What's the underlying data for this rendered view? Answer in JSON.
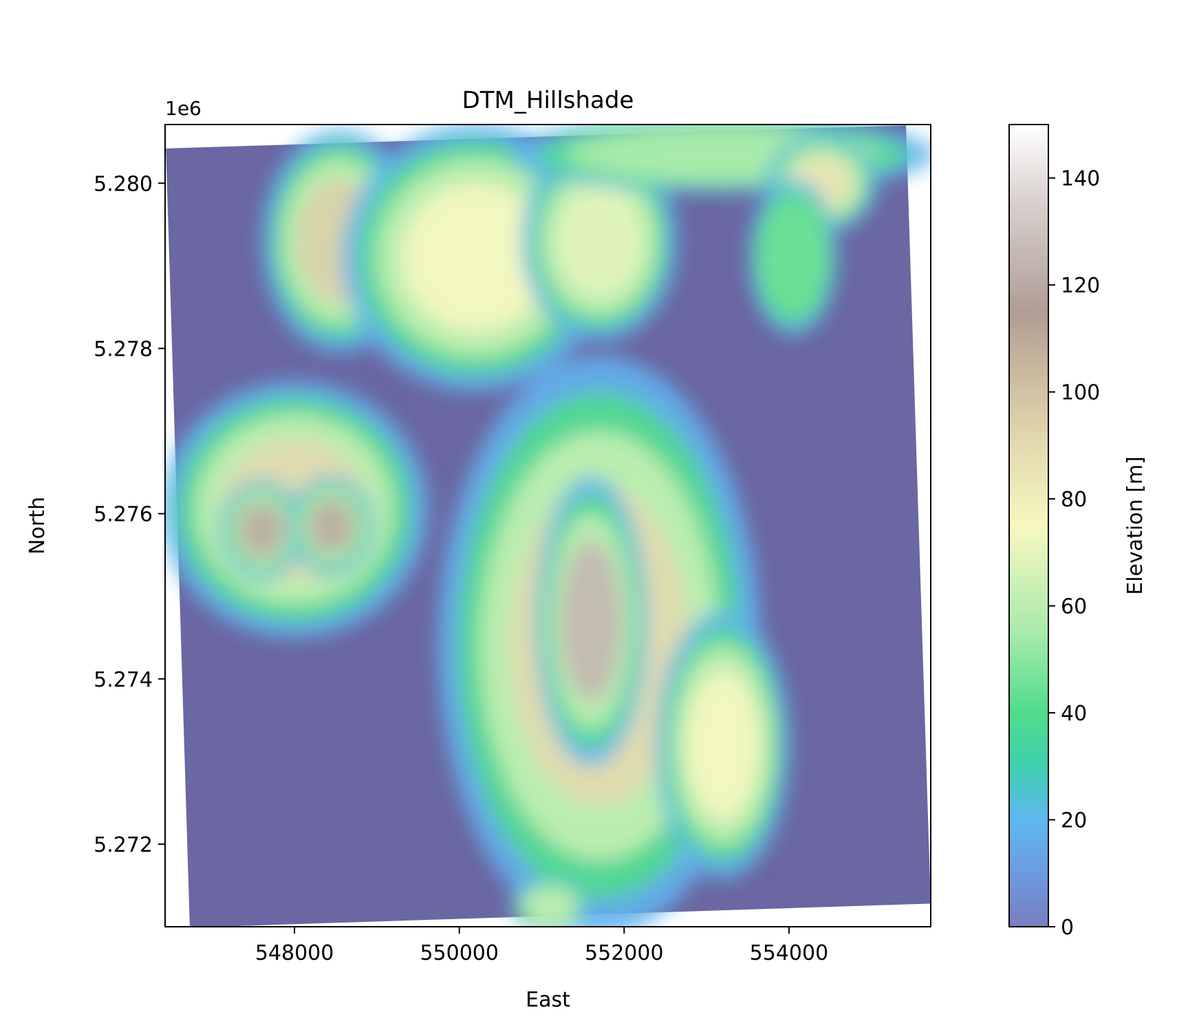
{
  "chart_data": {
    "type": "heatmap",
    "title": "DTM_Hillshade",
    "xlabel": "East",
    "ylabel": "North",
    "y_offset_label": "1e6",
    "xlim": [
      546430,
      555720
    ],
    "ylim": [
      5271000,
      5280710
    ],
    "x_ticks": [
      548000,
      550000,
      552000,
      554000
    ],
    "x_tick_labels": [
      "548000",
      "550000",
      "552000",
      "554000"
    ],
    "y_ticks": [
      5272000,
      5274000,
      5276000,
      5278000,
      5280000
    ],
    "y_tick_labels": [
      "5.272",
      "5.274",
      "5.276",
      "5.278",
      "5.280"
    ],
    "grid": false,
    "colorbar": {
      "label": "Elevation [m]",
      "range": [
        0,
        150
      ],
      "ticks": [
        0,
        20,
        40,
        60,
        80,
        100,
        120,
        140
      ],
      "tick_labels": [
        "0",
        "20",
        "40",
        "60",
        "80",
        "100",
        "120",
        "140"
      ],
      "colormap": "terrain",
      "stops": [
        {
          "value": 0,
          "color": "#7a7ec0"
        },
        {
          "value": 10,
          "color": "#6d9be0"
        },
        {
          "value": 20,
          "color": "#5fb8f1"
        },
        {
          "value": 30,
          "color": "#3fcfb0"
        },
        {
          "value": 40,
          "color": "#50dc8c"
        },
        {
          "value": 55,
          "color": "#a8ebab"
        },
        {
          "value": 75,
          "color": "#f7f7c0"
        },
        {
          "value": 95,
          "color": "#dccfa8"
        },
        {
          "value": 115,
          "color": "#b09d94"
        },
        {
          "value": 135,
          "color": "#d8cfcd"
        },
        {
          "value": 150,
          "color": "#ffffff"
        }
      ]
    },
    "raster_corners": {
      "nw": [
        546440,
        5280420
      ],
      "ne": [
        555420,
        5280700
      ],
      "se": [
        555720,
        5271280
      ],
      "sw": [
        546730,
        5270990
      ]
    },
    "nodata_color": "#6a67a2",
    "features": [
      {
        "name": "north-ridge-west",
        "cx": 548550,
        "cy": 5279300,
        "rx": 700,
        "ry": 1000,
        "elev": 95
      },
      {
        "name": "north-ridge-center",
        "cx": 550200,
        "cy": 5279100,
        "rx": 1200,
        "ry": 1200,
        "elev": 75
      },
      {
        "name": "north-ridge-east",
        "cx": 551700,
        "cy": 5279300,
        "rx": 700,
        "ry": 900,
        "elev": 70
      },
      {
        "name": "north-top-strip",
        "cx": 553200,
        "cy": 5280350,
        "rx": 1900,
        "ry": 350,
        "elev": 55
      },
      {
        "name": "northeast-hill",
        "cx": 554400,
        "cy": 5280000,
        "rx": 500,
        "ry": 450,
        "elev": 85
      },
      {
        "name": "east-small-hill",
        "cx": 554050,
        "cy": 5279100,
        "rx": 400,
        "ry": 700,
        "elev": 45
      },
      {
        "name": "west-plateau",
        "cx": 548000,
        "cy": 5276050,
        "rx": 1200,
        "ry": 1150,
        "elev": 90
      },
      {
        "name": "west-plateau-peak-1",
        "cx": 547600,
        "cy": 5275800,
        "rx": 380,
        "ry": 450,
        "elev": 120
      },
      {
        "name": "west-plateau-peak-2",
        "cx": 548450,
        "cy": 5275850,
        "rx": 380,
        "ry": 450,
        "elev": 120
      },
      {
        "name": "central-ridge",
        "cx": 551700,
        "cy": 5274400,
        "rx": 1450,
        "ry": 2600,
        "elev": 90
      },
      {
        "name": "central-peak",
        "cx": 551600,
        "cy": 5274700,
        "rx": 500,
        "ry": 1300,
        "elev": 125
      },
      {
        "name": "southeast-spur",
        "cx": 553200,
        "cy": 5273200,
        "rx": 600,
        "ry": 1200,
        "elev": 75
      },
      {
        "name": "south-knob",
        "cx": 551100,
        "cy": 5271250,
        "rx": 350,
        "ry": 250,
        "elev": 60
      }
    ]
  }
}
